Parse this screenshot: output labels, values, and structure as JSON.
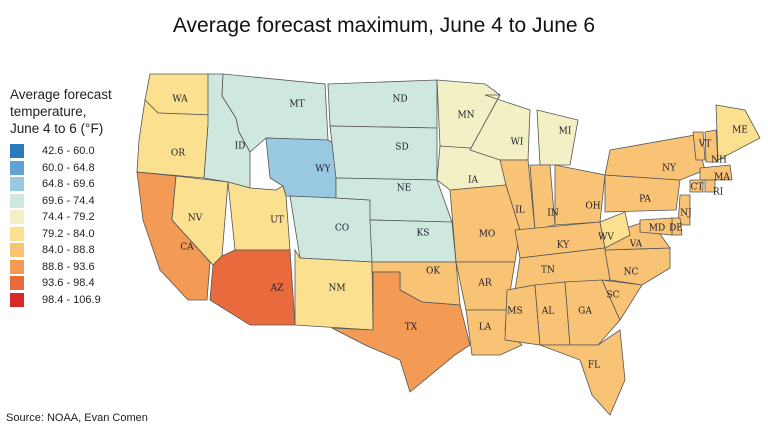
{
  "title": "Average forecast maximum, June 4 to June 6",
  "legend": {
    "title_lines": [
      "Average forecast",
      "temperature,",
      "June 4 to 6 (°F)"
    ],
    "bins": [
      {
        "label": "42.6 - 60.0",
        "color": "#2b7bba"
      },
      {
        "label": "60.0 - 64.8",
        "color": "#5fa2d4"
      },
      {
        "label": "64.8 - 69.6",
        "color": "#99c8e1"
      },
      {
        "label": "69.6 - 74.4",
        "color": "#cfe8df"
      },
      {
        "label": "74.4 - 79.2",
        "color": "#f2f0c4"
      },
      {
        "label": "79.2 - 84.0",
        "color": "#fbe18f"
      },
      {
        "label": "84.0 - 88.8",
        "color": "#f9c376"
      },
      {
        "label": "88.8 - 93.6",
        "color": "#f39a55"
      },
      {
        "label": "93.6 - 98.4",
        "color": "#e96a3d"
      },
      {
        "label": "98.4 - 106.9",
        "color": "#d7282a"
      }
    ]
  },
  "source": "Source: NOAA, Evan Comen",
  "states": [
    {
      "abbr": "WA",
      "bin": 5
    },
    {
      "abbr": "OR",
      "bin": 5
    },
    {
      "abbr": "CA",
      "bin": 7
    },
    {
      "abbr": "NV",
      "bin": 5
    },
    {
      "abbr": "ID",
      "bin": 3
    },
    {
      "abbr": "MT",
      "bin": 3
    },
    {
      "abbr": "WY",
      "bin": 2
    },
    {
      "abbr": "UT",
      "bin": 5
    },
    {
      "abbr": "CO",
      "bin": 3
    },
    {
      "abbr": "AZ",
      "bin": 8
    },
    {
      "abbr": "NM",
      "bin": 5
    },
    {
      "abbr": "ND",
      "bin": 3
    },
    {
      "abbr": "SD",
      "bin": 3
    },
    {
      "abbr": "NE",
      "bin": 3
    },
    {
      "abbr": "KS",
      "bin": 3
    },
    {
      "abbr": "OK",
      "bin": 6
    },
    {
      "abbr": "TX",
      "bin": 7
    },
    {
      "abbr": "MN",
      "bin": 4
    },
    {
      "abbr": "IA",
      "bin": 4
    },
    {
      "abbr": "MO",
      "bin": 6
    },
    {
      "abbr": "AR",
      "bin": 6
    },
    {
      "abbr": "LA",
      "bin": 6
    },
    {
      "abbr": "WI",
      "bin": 4
    },
    {
      "abbr": "IL",
      "bin": 6
    },
    {
      "abbr": "MI",
      "bin": 4
    },
    {
      "abbr": "IN",
      "bin": 6
    },
    {
      "abbr": "OH",
      "bin": 6
    },
    {
      "abbr": "KY",
      "bin": 6
    },
    {
      "abbr": "TN",
      "bin": 6
    },
    {
      "abbr": "MS",
      "bin": 6
    },
    {
      "abbr": "AL",
      "bin": 6
    },
    {
      "abbr": "GA",
      "bin": 6
    },
    {
      "abbr": "FL",
      "bin": 6
    },
    {
      "abbr": "SC",
      "bin": 6
    },
    {
      "abbr": "NC",
      "bin": 6
    },
    {
      "abbr": "VA",
      "bin": 6
    },
    {
      "abbr": "WV",
      "bin": 5
    },
    {
      "abbr": "PA",
      "bin": 6
    },
    {
      "abbr": "NY",
      "bin": 6
    },
    {
      "abbr": "VT",
      "bin": 6
    },
    {
      "abbr": "NH",
      "bin": 6
    },
    {
      "abbr": "ME",
      "bin": 5
    },
    {
      "abbr": "MA",
      "bin": 6
    },
    {
      "abbr": "CT",
      "bin": 6
    },
    {
      "abbr": "RI",
      "bin": 6
    },
    {
      "abbr": "NJ",
      "bin": 6
    },
    {
      "abbr": "DE",
      "bin": 6
    },
    {
      "abbr": "MD",
      "bin": 6
    }
  ]
}
